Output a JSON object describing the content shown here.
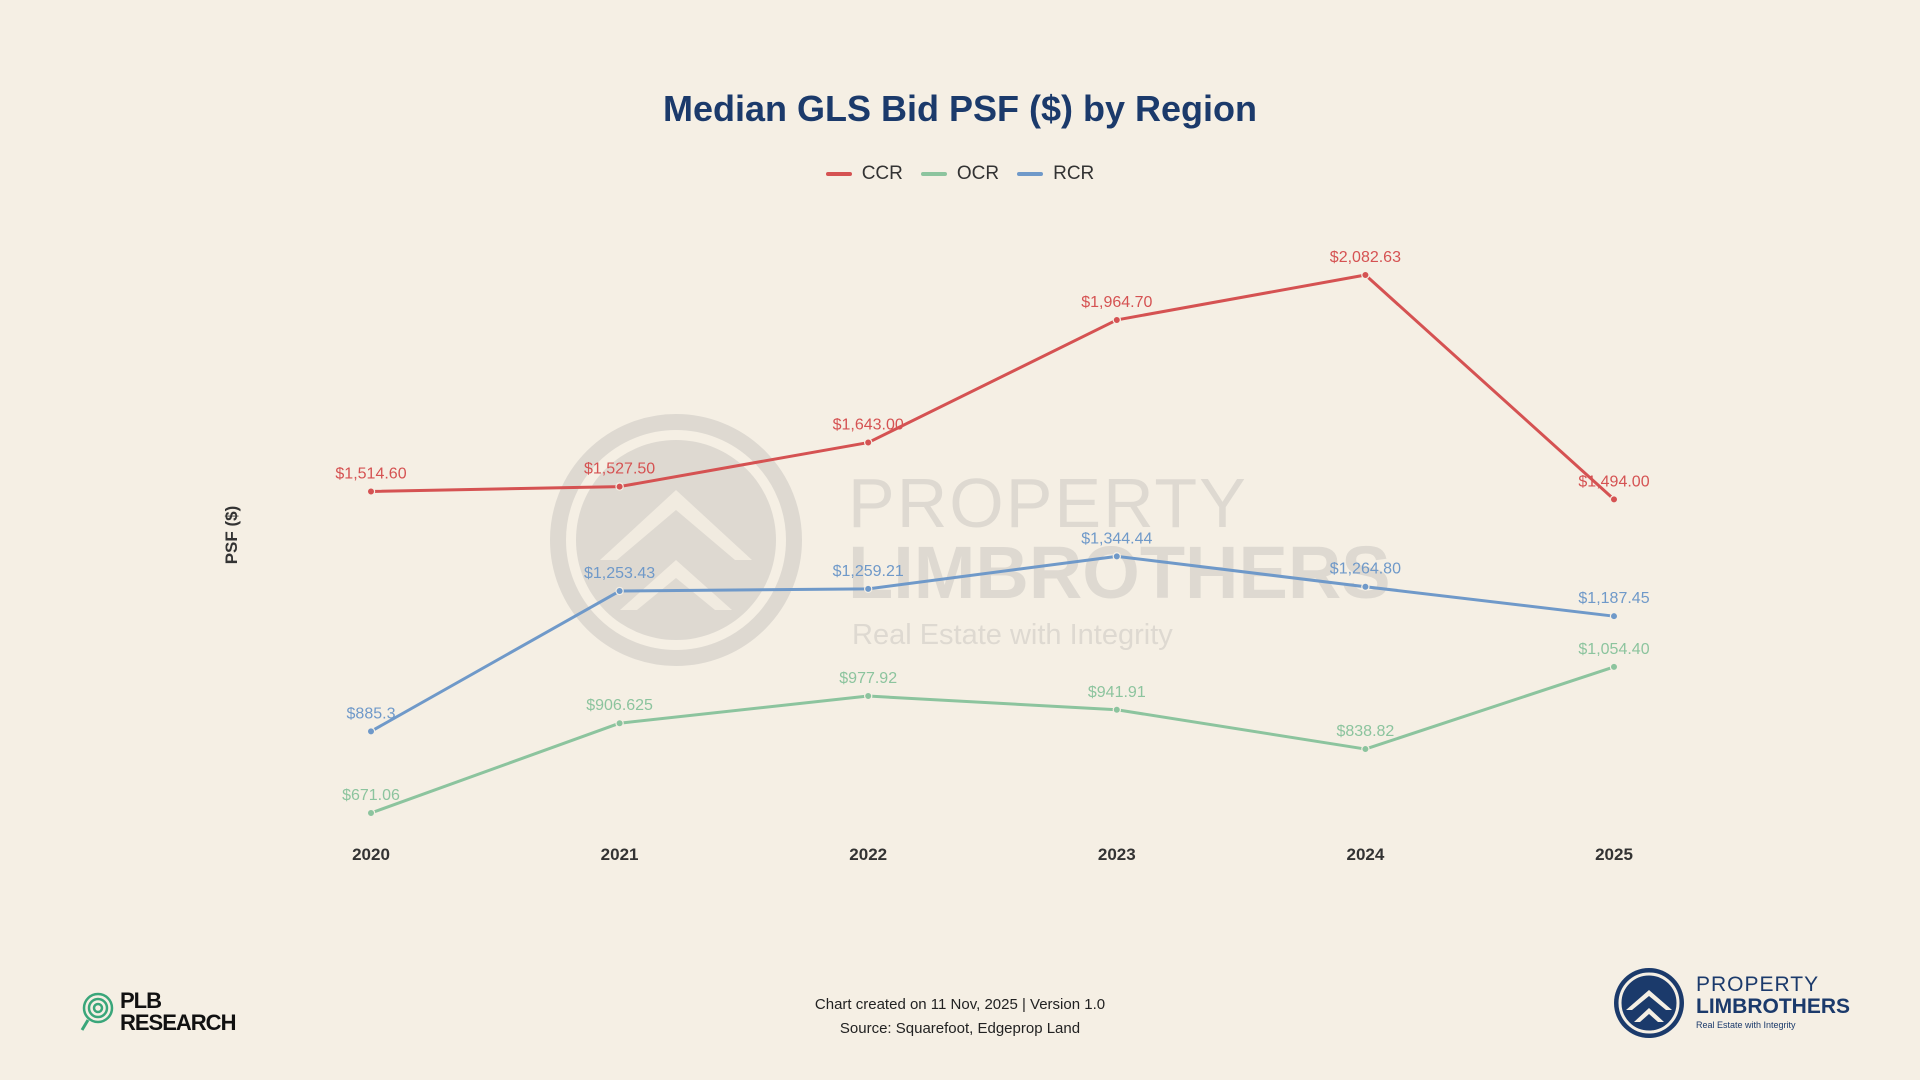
{
  "chart_data": {
    "type": "line",
    "title": "Median GLS Bid PSF ($) by Region",
    "xlabel": "",
    "ylabel": "PSF ($)",
    "categories": [
      "2020",
      "2021",
      "2022",
      "2023",
      "2024",
      "2025"
    ],
    "ylim": [
      550,
      2300
    ],
    "legend_position": "top-center",
    "series": [
      {
        "name": "CCR",
        "color": "#d55252",
        "values": [
          1514.6,
          1527.5,
          1643.0,
          1964.7,
          2082.63,
          1494.0
        ],
        "labels": [
          "$1,514.60",
          "$1,527.50",
          "$1,643.00",
          "$1,964.70",
          "$2,082.63",
          "$1,494.00"
        ]
      },
      {
        "name": "OCR",
        "color": "#8cc49e",
        "values": [
          671.06,
          906.625,
          977.92,
          941.91,
          838.82,
          1054.4
        ],
        "labels": [
          "$671.06",
          "$906.625",
          "$977.92",
          "$941.91",
          "$838.82",
          "$1,054.40"
        ]
      },
      {
        "name": "RCR",
        "color": "#6f99c9",
        "values": [
          885.3,
          1253.43,
          1259.21,
          1344.44,
          1264.8,
          1187.45
        ],
        "labels": [
          "$885.3",
          "$1,253.43",
          "$1,259.21",
          "$1,344.44",
          "$1,264.80",
          "$1,187.45"
        ]
      }
    ]
  },
  "watermark": {
    "line1": "PROPERTY",
    "line2": "LIMBROTHERS",
    "line3": "Real Estate with Integrity"
  },
  "footer": {
    "created": "Chart created on 11 Nov, 2025 | Version 1.0",
    "source": "Source: Squarefoot, Edgeprop Land"
  },
  "logos": {
    "plb_top": "PLB",
    "plb_bottom": "RESEARCH",
    "brand_line1": "PROPERTY",
    "brand_line2": "LIMBROTHERS",
    "brand_line3": "Real Estate with Integrity"
  }
}
